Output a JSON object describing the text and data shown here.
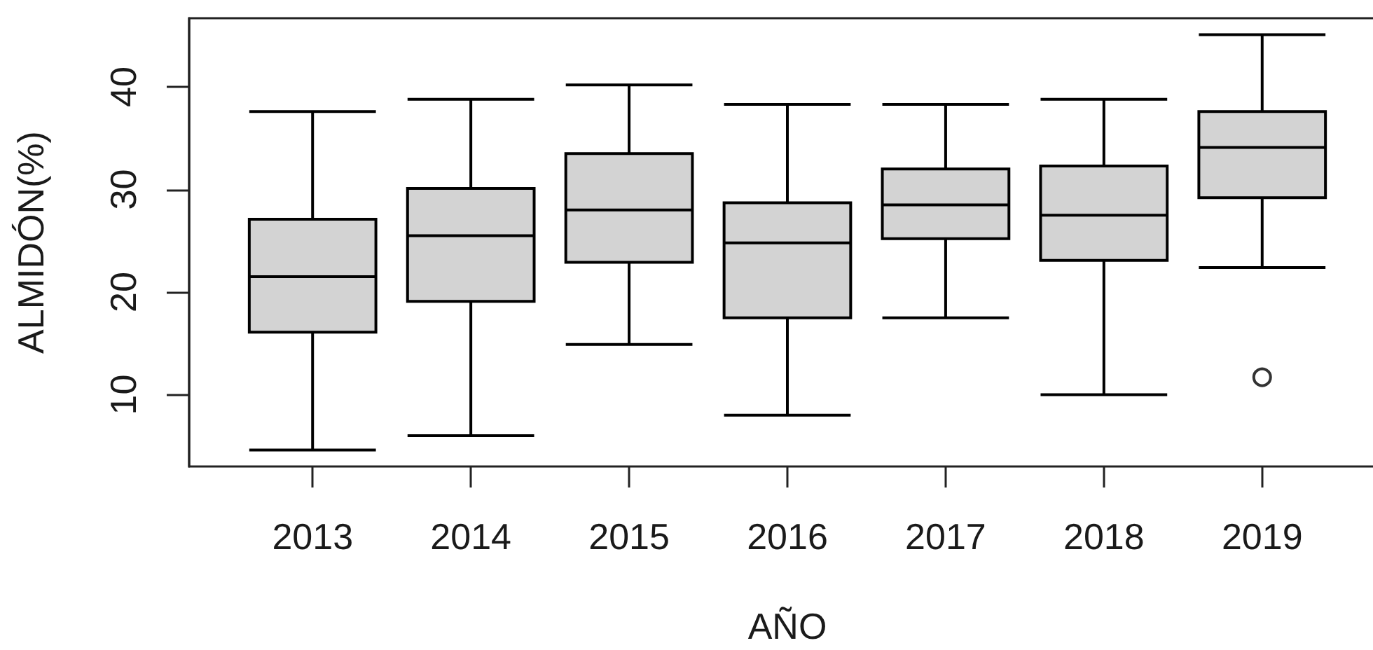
{
  "chart_data": {
    "type": "box",
    "xlabel": "AÑO",
    "ylabel": "ALMIDÓN(%)",
    "categories": [
      "2013",
      "2014",
      "2015",
      "2016",
      "2017",
      "2018",
      "2019"
    ],
    "color": "#d3d3d3",
    "boxes": [
      {
        "low": 4.6,
        "q1": 16.1,
        "median": 21.5,
        "q3": 27.1,
        "high": 37.6
      },
      {
        "low": 6.0,
        "q1": 19.1,
        "median": 25.5,
        "q3": 30.1,
        "high": 38.8
      },
      {
        "low": 14.9,
        "q1": 22.9,
        "median": 28.0,
        "q3": 33.5,
        "high": 40.2
      },
      {
        "low": 8.0,
        "q1": 17.5,
        "median": 24.8,
        "q3": 28.7,
        "high": 38.3
      },
      {
        "low": 17.5,
        "q1": 25.2,
        "median": 28.5,
        "q3": 32.0,
        "high": 38.3
      },
      {
        "low": 10.0,
        "q1": 23.1,
        "median": 27.5,
        "q3": 32.3,
        "high": 38.8
      },
      {
        "low": 22.4,
        "q1": 29.2,
        "median": 34.1,
        "q3": 37.6,
        "high": 45.1,
        "outliers": [
          11.7
        ]
      }
    ],
    "ylim": [
      3,
      46.7
    ],
    "yticks": [
      10,
      20,
      30,
      40
    ]
  }
}
